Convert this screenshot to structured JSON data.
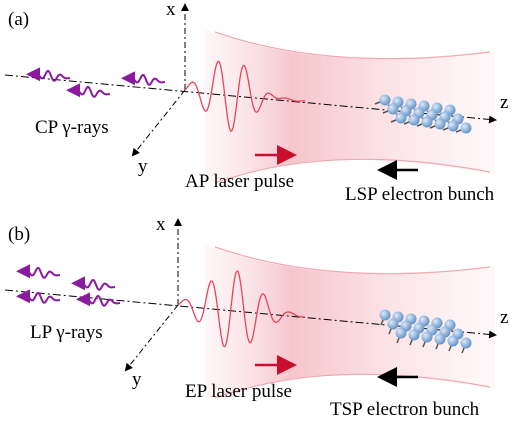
{
  "panels": [
    {
      "label": "(a)",
      "x_axis": "x",
      "z_axis": "z",
      "y_axis": "y",
      "gamma_label": "CP γ-rays",
      "laser_label": "AP laser pulse",
      "electron_label": "LSP electron bunch"
    },
    {
      "label": "(b)",
      "x_axis": "x",
      "z_axis": "z",
      "y_axis": "y",
      "gamma_label": "LP γ-rays",
      "laser_label": "EP laser pulse",
      "electron_label": "TSP electron bunch"
    }
  ]
}
